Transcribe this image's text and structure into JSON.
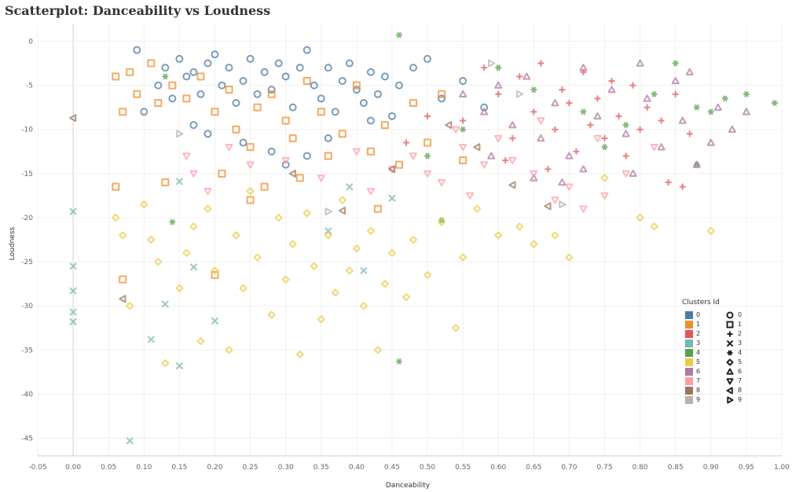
{
  "title": "Scatterplot: Danceability vs Loudness",
  "chart_data": {
    "type": "scatter",
    "title": "Scatterplot: Danceability vs Loudness",
    "xlabel": "Danceability",
    "ylabel": "Loudness",
    "xlim": [
      -0.05,
      1.0
    ],
    "ylim": [
      -47,
      2
    ],
    "xticks": [
      "-0.05",
      "0.00",
      "0.05",
      "0.10",
      "0.15",
      "0.20",
      "0.25",
      "0.30",
      "0.35",
      "0.40",
      "0.45",
      "0.50",
      "0.55",
      "0.60",
      "0.65",
      "0.70",
      "0.75",
      "0.80",
      "0.85",
      "0.90",
      "0.95",
      "1.00"
    ],
    "yticks": [
      "0",
      "-5",
      "-10",
      "-15",
      "-20",
      "-25",
      "-30",
      "-35",
      "-40",
      "-45"
    ],
    "grid": true,
    "legend": {
      "title": "Clusters Id",
      "placement": "bottom-right",
      "items": [
        {
          "id": "0",
          "color": "#4e79a7",
          "marker": "circle"
        },
        {
          "id": "1",
          "color": "#f28e2b",
          "marker": "square"
        },
        {
          "id": "2",
          "color": "#e15759",
          "marker": "plus"
        },
        {
          "id": "3",
          "color": "#76b7b2",
          "marker": "cross"
        },
        {
          "id": "4",
          "color": "#59a14f",
          "marker": "asterisk"
        },
        {
          "id": "5",
          "color": "#edc948",
          "marker": "diamond"
        },
        {
          "id": "6",
          "color": "#b07aa1",
          "marker": "triangle-up"
        },
        {
          "id": "7",
          "color": "#ff9da7",
          "marker": "triangle-down"
        },
        {
          "id": "8",
          "color": "#9c755f",
          "marker": "triangle-left"
        },
        {
          "id": "9",
          "color": "#bab0ac",
          "marker": "triangle-right"
        }
      ]
    },
    "series": [
      {
        "cluster": "0",
        "points": [
          [
            0.09,
            -1.0
          ],
          [
            0.1,
            -8.0
          ],
          [
            0.12,
            -5.0
          ],
          [
            0.13,
            -3.0
          ],
          [
            0.14,
            -6.5
          ],
          [
            0.15,
            -2.0
          ],
          [
            0.16,
            -4.0
          ],
          [
            0.17,
            -3.5
          ],
          [
            0.18,
            -6.0
          ],
          [
            0.19,
            -2.5
          ],
          [
            0.2,
            -1.5
          ],
          [
            0.21,
            -5.0
          ],
          [
            0.22,
            -3.0
          ],
          [
            0.23,
            -7.0
          ],
          [
            0.24,
            -4.5
          ],
          [
            0.25,
            -2.0
          ],
          [
            0.26,
            -6.0
          ],
          [
            0.27,
            -3.5
          ],
          [
            0.28,
            -5.5
          ],
          [
            0.29,
            -2.5
          ],
          [
            0.3,
            -4.0
          ],
          [
            0.31,
            -7.5
          ],
          [
            0.32,
            -3.0
          ],
          [
            0.33,
            -1.0
          ],
          [
            0.34,
            -5.0
          ],
          [
            0.35,
            -6.5
          ],
          [
            0.36,
            -3.0
          ],
          [
            0.37,
            -8.0
          ],
          [
            0.38,
            -4.5
          ],
          [
            0.39,
            -2.5
          ],
          [
            0.4,
            -5.5
          ],
          [
            0.41,
            -7.0
          ],
          [
            0.42,
            -3.5
          ],
          [
            0.43,
            -6.0
          ],
          [
            0.44,
            -4.0
          ],
          [
            0.45,
            -8.5
          ],
          [
            0.46,
            -5.0
          ],
          [
            0.48,
            -3.0
          ],
          [
            0.5,
            -2.0
          ],
          [
            0.52,
            -6.5
          ],
          [
            0.55,
            -4.5
          ],
          [
            0.58,
            -7.5
          ],
          [
            0.33,
            -13.0
          ],
          [
            0.28,
            -12.5
          ],
          [
            0.17,
            -9.5
          ],
          [
            0.19,
            -10.5
          ],
          [
            0.36,
            -11.0
          ],
          [
            0.24,
            -11.5
          ],
          [
            0.42,
            -9.0
          ],
          [
            0.3,
            -14.0
          ]
        ]
      },
      {
        "cluster": "1",
        "points": [
          [
            0.06,
            -4.0
          ],
          [
            0.07,
            -8.0
          ],
          [
            0.08,
            -3.5
          ],
          [
            0.09,
            -6.0
          ],
          [
            0.11,
            -2.5
          ],
          [
            0.12,
            -7.0
          ],
          [
            0.14,
            -5.0
          ],
          [
            0.16,
            -6.5
          ],
          [
            0.18,
            -4.0
          ],
          [
            0.2,
            -8.0
          ],
          [
            0.22,
            -5.5
          ],
          [
            0.23,
            -10.0
          ],
          [
            0.25,
            -12.0
          ],
          [
            0.26,
            -7.5
          ],
          [
            0.28,
            -6.0
          ],
          [
            0.3,
            -9.0
          ],
          [
            0.31,
            -11.0
          ],
          [
            0.33,
            -4.5
          ],
          [
            0.35,
            -8.0
          ],
          [
            0.36,
            -13.0
          ],
          [
            0.38,
            -10.5
          ],
          [
            0.4,
            -5.0
          ],
          [
            0.42,
            -12.5
          ],
          [
            0.44,
            -9.5
          ],
          [
            0.46,
            -14.0
          ],
          [
            0.48,
            -7.0
          ],
          [
            0.5,
            -11.5
          ],
          [
            0.52,
            -6.0
          ],
          [
            0.55,
            -13.5
          ],
          [
            0.06,
            -16.5
          ],
          [
            0.07,
            -27.0
          ],
          [
            0.13,
            -16.0
          ],
          [
            0.2,
            -26.5
          ],
          [
            0.25,
            -18.0
          ],
          [
            0.43,
            -19.0
          ],
          [
            0.21,
            -15.0
          ],
          [
            0.27,
            -16.5
          ],
          [
            0.32,
            -15.5
          ]
        ]
      },
      {
        "cluster": "2",
        "points": [
          [
            0.55,
            -9.0
          ],
          [
            0.58,
            -3.0
          ],
          [
            0.6,
            -6.0
          ],
          [
            0.62,
            -11.0
          ],
          [
            0.63,
            -4.0
          ],
          [
            0.65,
            -8.0
          ],
          [
            0.66,
            -2.5
          ],
          [
            0.68,
            -10.0
          ],
          [
            0.69,
            -5.5
          ],
          [
            0.7,
            -7.0
          ],
          [
            0.71,
            -12.5
          ],
          [
            0.72,
            -3.5
          ],
          [
            0.73,
            -9.5
          ],
          [
            0.74,
            -6.5
          ],
          [
            0.75,
            -11.0
          ],
          [
            0.76,
            -4.5
          ],
          [
            0.77,
            -8.5
          ],
          [
            0.78,
            -13.0
          ],
          [
            0.79,
            -5.0
          ],
          [
            0.8,
            -10.0
          ],
          [
            0.81,
            -7.5
          ],
          [
            0.83,
            -9.0
          ],
          [
            0.85,
            -6.0
          ],
          [
            0.87,
            -10.5
          ],
          [
            0.84,
            -16.0
          ],
          [
            0.86,
            -16.5
          ],
          [
            0.67,
            -14.5
          ],
          [
            0.61,
            -13.5
          ],
          [
            0.5,
            -8.5
          ],
          [
            0.47,
            -11.5
          ]
        ]
      },
      {
        "cluster": "3",
        "points": [
          [
            0.0,
            -19.3
          ],
          [
            0.0,
            -25.5
          ],
          [
            0.0,
            -28.3
          ],
          [
            0.0,
            -30.7
          ],
          [
            0.0,
            -31.8
          ],
          [
            0.08,
            -45.3
          ],
          [
            0.11,
            -33.8
          ],
          [
            0.13,
            -29.8
          ],
          [
            0.15,
            -36.8
          ],
          [
            0.17,
            -25.6
          ],
          [
            0.2,
            -31.7
          ],
          [
            0.15,
            -15.9
          ],
          [
            0.36,
            -21.5
          ],
          [
            0.39,
            -16.5
          ],
          [
            0.41,
            -26.0
          ],
          [
            0.45,
            -17.8
          ]
        ]
      },
      {
        "cluster": "4",
        "points": [
          [
            0.46,
            0.7
          ],
          [
            0.46,
            -36.3
          ],
          [
            0.14,
            -20.5
          ],
          [
            0.52,
            -20.3
          ],
          [
            0.13,
            -4.0
          ],
          [
            0.6,
            -3.0
          ],
          [
            0.65,
            -5.5
          ],
          [
            0.72,
            -8.0
          ],
          [
            0.78,
            -9.5
          ],
          [
            0.82,
            -6.0
          ],
          [
            0.85,
            -2.5
          ],
          [
            0.88,
            -7.5
          ],
          [
            0.9,
            -8.0
          ],
          [
            0.92,
            -6.5
          ],
          [
            0.95,
            -6.0
          ],
          [
            0.99,
            -7.0
          ],
          [
            0.88,
            -14.0
          ],
          [
            0.5,
            -13.0
          ],
          [
            0.55,
            -10.0
          ],
          [
            0.75,
            -12.0
          ]
        ]
      },
      {
        "cluster": "5",
        "points": [
          [
            0.06,
            -20.0
          ],
          [
            0.07,
            -22.0
          ],
          [
            0.08,
            -30.0
          ],
          [
            0.1,
            -18.5
          ],
          [
            0.11,
            -22.5
          ],
          [
            0.12,
            -25.0
          ],
          [
            0.13,
            -36.5
          ],
          [
            0.15,
            -28.0
          ],
          [
            0.16,
            -24.0
          ],
          [
            0.17,
            -21.0
          ],
          [
            0.18,
            -34.0
          ],
          [
            0.19,
            -19.0
          ],
          [
            0.2,
            -26.0
          ],
          [
            0.22,
            -35.0
          ],
          [
            0.23,
            -22.0
          ],
          [
            0.24,
            -28.0
          ],
          [
            0.25,
            -17.0
          ],
          [
            0.26,
            -24.5
          ],
          [
            0.28,
            -31.0
          ],
          [
            0.29,
            -20.0
          ],
          [
            0.3,
            -27.0
          ],
          [
            0.31,
            -23.0
          ],
          [
            0.32,
            -35.5
          ],
          [
            0.33,
            -19.5
          ],
          [
            0.34,
            -25.5
          ],
          [
            0.35,
            -31.5
          ],
          [
            0.36,
            -22.0
          ],
          [
            0.37,
            -28.5
          ],
          [
            0.38,
            -18.0
          ],
          [
            0.39,
            -26.0
          ],
          [
            0.4,
            -23.5
          ],
          [
            0.41,
            -30.0
          ],
          [
            0.42,
            -21.5
          ],
          [
            0.43,
            -35.0
          ],
          [
            0.44,
            -27.5
          ],
          [
            0.45,
            -24.0
          ],
          [
            0.47,
            -29.0
          ],
          [
            0.48,
            -22.5
          ],
          [
            0.5,
            -26.5
          ],
          [
            0.52,
            -20.5
          ],
          [
            0.54,
            -32.5
          ],
          [
            0.55,
            -24.5
          ],
          [
            0.57,
            -19.0
          ],
          [
            0.6,
            -22.0
          ],
          [
            0.63,
            -21.0
          ],
          [
            0.65,
            -23.0
          ],
          [
            0.68,
            -22.0
          ],
          [
            0.8,
            -20.0
          ],
          [
            0.82,
            -21.0
          ],
          [
            0.9,
            -21.5
          ],
          [
            0.75,
            -15.5
          ],
          [
            0.7,
            -24.5
          ]
        ]
      },
      {
        "cluster": "6",
        "points": [
          [
            0.55,
            -6.0
          ],
          [
            0.58,
            -8.0
          ],
          [
            0.6,
            -5.0
          ],
          [
            0.62,
            -9.5
          ],
          [
            0.64,
            -4.0
          ],
          [
            0.66,
            -11.0
          ],
          [
            0.68,
            -7.0
          ],
          [
            0.7,
            -13.0
          ],
          [
            0.72,
            -3.0
          ],
          [
            0.74,
            -8.5
          ],
          [
            0.76,
            -5.5
          ],
          [
            0.78,
            -10.5
          ],
          [
            0.8,
            -2.5
          ],
          [
            0.81,
            -6.5
          ],
          [
            0.83,
            -12.0
          ],
          [
            0.85,
            -4.5
          ],
          [
            0.86,
            -9.0
          ],
          [
            0.88,
            -14.0
          ],
          [
            0.9,
            -11.5
          ],
          [
            0.91,
            -7.5
          ],
          [
            0.93,
            -10.0
          ],
          [
            0.95,
            -8.0
          ],
          [
            0.87,
            -3.5
          ],
          [
            0.79,
            -15.0
          ],
          [
            0.69,
            -16.0
          ],
          [
            0.72,
            -14.5
          ],
          [
            0.65,
            -15.5
          ],
          [
            0.59,
            -13.0
          ]
        ]
      },
      {
        "cluster": "7",
        "points": [
          [
            0.16,
            -13.0
          ],
          [
            0.17,
            -15.0
          ],
          [
            0.19,
            -17.0
          ],
          [
            0.22,
            -12.0
          ],
          [
            0.25,
            -14.0
          ],
          [
            0.3,
            -13.5
          ],
          [
            0.35,
            -15.5
          ],
          [
            0.4,
            -12.5
          ],
          [
            0.45,
            -14.5
          ],
          [
            0.48,
            -13.0
          ],
          [
            0.5,
            -15.0
          ],
          [
            0.52,
            -16.0
          ],
          [
            0.55,
            -12.0
          ],
          [
            0.58,
            -14.0
          ],
          [
            0.6,
            -11.0
          ],
          [
            0.62,
            -13.5
          ],
          [
            0.65,
            -15.0
          ],
          [
            0.68,
            -18.0
          ],
          [
            0.7,
            -16.5
          ],
          [
            0.72,
            -19.0
          ],
          [
            0.75,
            -17.5
          ],
          [
            0.78,
            -15.0
          ],
          [
            0.82,
            -12.0
          ],
          [
            0.56,
            -17.5
          ],
          [
            0.42,
            -17.0
          ],
          [
            0.66,
            -9.0
          ],
          [
            0.74,
            -11.0
          ],
          [
            0.54,
            -10.0
          ]
        ]
      },
      {
        "cluster": "8",
        "points": [
          [
            0.0,
            -8.7
          ],
          [
            0.07,
            -29.2
          ],
          [
            0.38,
            -19.2
          ],
          [
            0.45,
            -14.5
          ],
          [
            0.62,
            -16.3
          ],
          [
            0.67,
            -18.7
          ],
          [
            0.57,
            -12.0
          ],
          [
            0.53,
            -9.5
          ],
          [
            0.31,
            -15.0
          ]
        ]
      },
      {
        "cluster": "9",
        "points": [
          [
            0.15,
            -10.5
          ],
          [
            0.36,
            -19.3
          ],
          [
            0.59,
            -2.5
          ],
          [
            0.69,
            -18.5
          ],
          [
            0.63,
            -6.0
          ]
        ]
      }
    ]
  }
}
